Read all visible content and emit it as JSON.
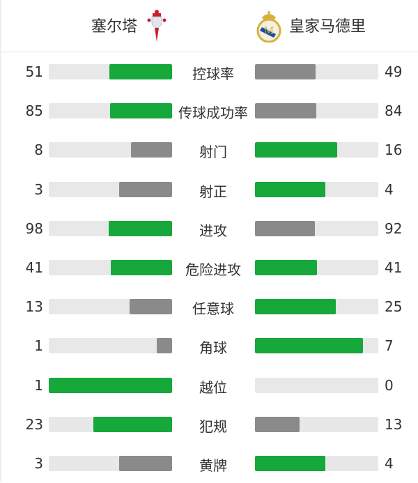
{
  "header": {
    "home_team": "塞尔塔",
    "away_team": "皇家马德里",
    "home_logo_icon": "celta-vigo-crest-icon",
    "away_logo_icon": "real-madrid-crest-icon"
  },
  "colors": {
    "leading": "#16a83a",
    "trailing": "#8a8a8a",
    "track": "#e8e8e8"
  },
  "stats": [
    {
      "label": "控球率",
      "home": 51,
      "away": 49
    },
    {
      "label": "传球成功率",
      "home": 85,
      "away": 84
    },
    {
      "label": "射门",
      "home": 8,
      "away": 16
    },
    {
      "label": "射正",
      "home": 3,
      "away": 4
    },
    {
      "label": "进攻",
      "home": 98,
      "away": 92
    },
    {
      "label": "危险进攻",
      "home": 41,
      "away": 41
    },
    {
      "label": "任意球",
      "home": 13,
      "away": 25
    },
    {
      "label": "角球",
      "home": 1,
      "away": 7
    },
    {
      "label": "越位",
      "home": 1,
      "away": 0
    },
    {
      "label": "犯规",
      "home": 23,
      "away": 13
    },
    {
      "label": "黄牌",
      "home": 3,
      "away": 4
    }
  ]
}
